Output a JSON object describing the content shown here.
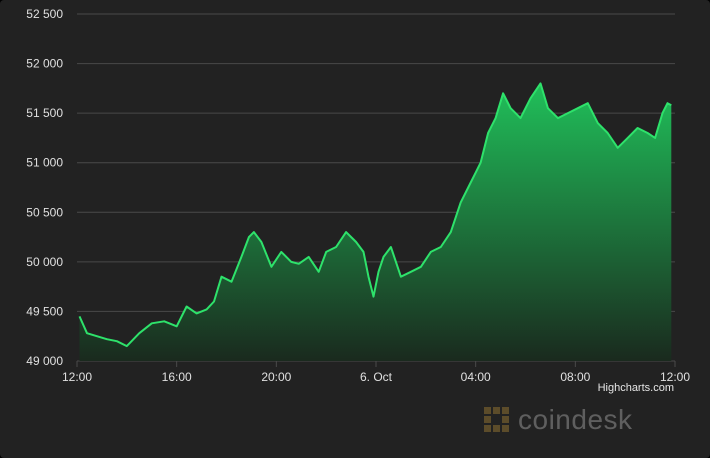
{
  "credit": "Highcharts.com",
  "watermark": "coindesk",
  "colors": {
    "background": "#222222",
    "grid": "#4a4a4a",
    "line": "#2ee26b",
    "fill_top": "#20c05a",
    "fill_bottom": "#1a2a1e",
    "tick": "#e0e0e0"
  },
  "chart_data": {
    "type": "area",
    "title": "",
    "xlabel": "",
    "ylabel": "",
    "ylim": [
      49000,
      52500
    ],
    "yticks": [
      49000,
      49500,
      50000,
      50500,
      51000,
      51500,
      52000,
      52500
    ],
    "ytick_labels": [
      "49 000",
      "49 500",
      "50 000",
      "50 500",
      "51 000",
      "51 500",
      "52 000",
      "52 500"
    ],
    "xlim": [
      0,
      24
    ],
    "x_unit": "hours since 12:00",
    "xticks": [
      0,
      4,
      8,
      12,
      16,
      20,
      24
    ],
    "xtick_labels": [
      "12:00",
      "16:00",
      "20:00",
      "6. Oct",
      "04:00",
      "08:00",
      "12:00"
    ],
    "grid": true,
    "series": [
      {
        "x": [
          0.1,
          0.4,
          0.8,
          1.2,
          1.6,
          2.0,
          2.5,
          3.0,
          3.5,
          4.0,
          4.4,
          4.8,
          5.2,
          5.5,
          5.8,
          6.2,
          6.6,
          6.9,
          7.1,
          7.4,
          7.8,
          8.2,
          8.6,
          8.9,
          9.3,
          9.7,
          10.0,
          10.4,
          10.8,
          11.2,
          11.5,
          11.7,
          11.9,
          12.1,
          12.3,
          12.6,
          13.0,
          13.4,
          13.8,
          14.2,
          14.6,
          15.0,
          15.4,
          15.8,
          16.0,
          16.2,
          16.5,
          16.8,
          17.1,
          17.4,
          17.8,
          18.2,
          18.6,
          18.9,
          19.3,
          19.7,
          20.1,
          20.5,
          20.9,
          21.3,
          21.7,
          22.1,
          22.5,
          22.9,
          23.2,
          23.5,
          23.7,
          23.85
        ],
        "y": [
          49450,
          49280,
          49250,
          49220,
          49200,
          49150,
          49280,
          49380,
          49400,
          49350,
          49550,
          49480,
          49520,
          49600,
          49850,
          49800,
          50050,
          50250,
          50300,
          50200,
          49950,
          50100,
          50000,
          49980,
          50050,
          49900,
          50100,
          50150,
          50300,
          50200,
          50100,
          49850,
          49650,
          49900,
          50050,
          50150,
          49850,
          49900,
          49950,
          50100,
          50150,
          50300,
          50600,
          50800,
          50900,
          51000,
          51300,
          51450,
          51700,
          51550,
          51450,
          51650,
          51800,
          51550,
          51450,
          51500,
          51550,
          51600,
          51400,
          51300,
          51150,
          51250,
          51350,
          51300,
          51250,
          51500,
          51600,
          51580
        ]
      }
    ]
  }
}
